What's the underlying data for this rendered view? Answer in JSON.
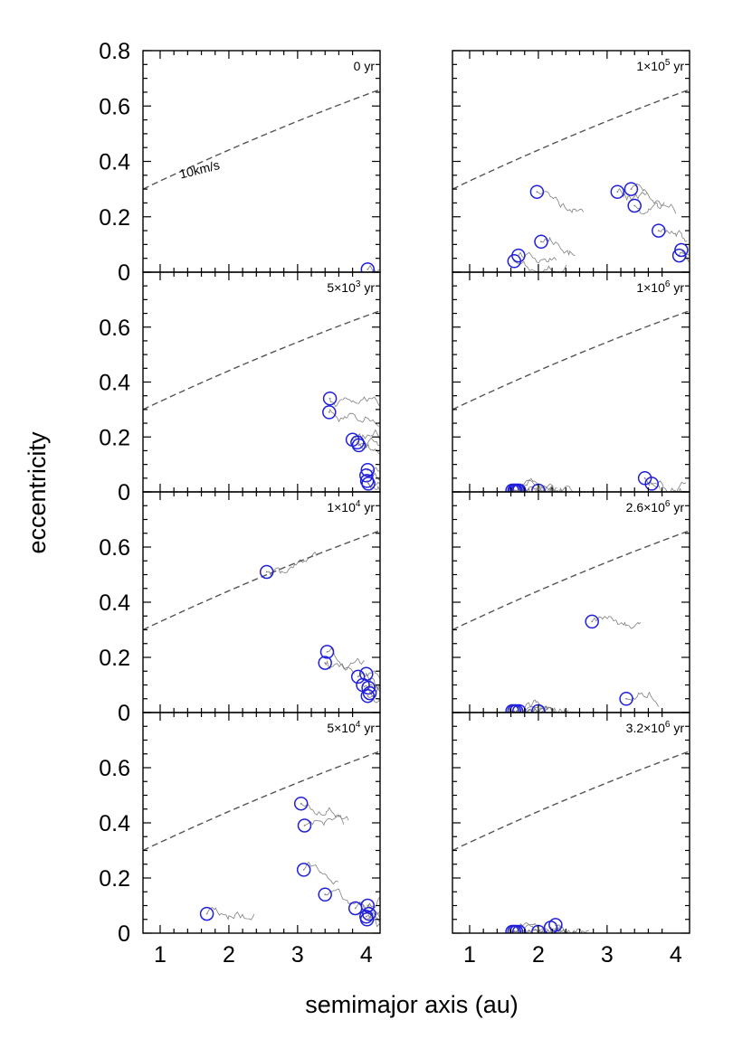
{
  "figure": {
    "xlabel": "semimajor axis (au)",
    "ylabel": "eccentricity",
    "xlim": [
      0.75,
      4.2
    ],
    "ylim": [
      0,
      0.8
    ],
    "xticks": [
      "1",
      "2",
      "3",
      "4"
    ],
    "yticks_top": [
      "0",
      "0.2",
      "0.4",
      "0.6",
      "0.8"
    ],
    "yticks": [
      "0",
      "0.2",
      "0.4",
      "0.6"
    ],
    "colors": {
      "orbit": "#808080",
      "marker": "#1f1fdc",
      "velocity_curve": "#555555",
      "frame": "#000000"
    },
    "velocity_curve_label": "10km/s"
  },
  "chart_data": [
    {
      "type": "scatter",
      "panel": "0 yr",
      "time_label": {
        "base": "0",
        "exp": "",
        "unit": "yr"
      },
      "points": [
        [
          4.02,
          0.01
        ]
      ],
      "trail_points": [
        [
          4.02,
          0.01
        ]
      ]
    },
    {
      "type": "scatter",
      "panel": "5x10^3 yr",
      "time_label": {
        "base": "5×10",
        "exp": "3",
        "unit": "yr"
      },
      "points": [
        [
          3.47,
          0.34
        ],
        [
          3.46,
          0.29
        ],
        [
          3.8,
          0.19
        ],
        [
          3.87,
          0.18
        ],
        [
          3.89,
          0.17
        ],
        [
          4.02,
          0.08
        ],
        [
          4.0,
          0.06
        ],
        [
          4.01,
          0.04
        ],
        [
          4.03,
          0.03
        ]
      ],
      "trail_points": [
        [
          3.47,
          0.34
        ],
        [
          3.46,
          0.29
        ],
        [
          3.8,
          0.19
        ],
        [
          3.87,
          0.18
        ],
        [
          3.89,
          0.17
        ],
        [
          4.02,
          0.08
        ],
        [
          4.0,
          0.06
        ],
        [
          4.01,
          0.04
        ],
        [
          4.03,
          0.03
        ]
      ]
    },
    {
      "type": "scatter",
      "panel": "1x10^4 yr",
      "time_label": {
        "base": "1×10",
        "exp": "4",
        "unit": "yr"
      },
      "points": [
        [
          2.55,
          0.51
        ],
        [
          3.43,
          0.22
        ],
        [
          3.4,
          0.18
        ],
        [
          3.88,
          0.13
        ],
        [
          4.0,
          0.14
        ],
        [
          3.95,
          0.1
        ],
        [
          4.03,
          0.09
        ],
        [
          4.02,
          0.06
        ],
        [
          4.05,
          0.07
        ]
      ],
      "trail_points": [
        [
          2.55,
          0.51
        ],
        [
          3.43,
          0.22
        ],
        [
          3.4,
          0.18
        ],
        [
          3.88,
          0.13
        ],
        [
          4.0,
          0.14
        ],
        [
          3.95,
          0.1
        ],
        [
          4.03,
          0.09
        ],
        [
          4.02,
          0.06
        ],
        [
          4.05,
          0.07
        ]
      ]
    },
    {
      "type": "scatter",
      "panel": "5x10^4 yr",
      "time_label": {
        "base": "5×10",
        "exp": "4",
        "unit": "yr"
      },
      "points": [
        [
          1.68,
          0.07
        ],
        [
          3.05,
          0.47
        ],
        [
          3.1,
          0.39
        ],
        [
          3.09,
          0.23
        ],
        [
          3.4,
          0.14
        ],
        [
          3.84,
          0.09
        ],
        [
          4.02,
          0.1
        ],
        [
          4.0,
          0.06
        ],
        [
          4.04,
          0.07
        ],
        [
          4.01,
          0.05
        ]
      ],
      "trail_points": [
        [
          1.68,
          0.07
        ],
        [
          3.05,
          0.47
        ],
        [
          3.1,
          0.39
        ],
        [
          3.09,
          0.23
        ],
        [
          3.4,
          0.14
        ],
        [
          3.84,
          0.09
        ],
        [
          4.02,
          0.1
        ],
        [
          4.0,
          0.06
        ],
        [
          4.04,
          0.07
        ],
        [
          4.01,
          0.05
        ]
      ]
    },
    {
      "type": "scatter",
      "panel": "1x10^5 yr",
      "time_label": {
        "base": "1×10",
        "exp": "5",
        "unit": "yr"
      },
      "points": [
        [
          1.65,
          0.04
        ],
        [
          1.71,
          0.06
        ],
        [
          1.98,
          0.29
        ],
        [
          2.04,
          0.11
        ],
        [
          3.15,
          0.29
        ],
        [
          3.35,
          0.3
        ],
        [
          3.4,
          0.24
        ],
        [
          3.75,
          0.15
        ],
        [
          4.05,
          0.06
        ],
        [
          4.08,
          0.08
        ]
      ],
      "trail_points": [
        [
          1.65,
          0.04
        ],
        [
          1.71,
          0.06
        ],
        [
          1.98,
          0.29
        ],
        [
          2.04,
          0.11
        ],
        [
          3.15,
          0.29
        ],
        [
          3.35,
          0.3
        ],
        [
          3.4,
          0.24
        ],
        [
          3.75,
          0.15
        ],
        [
          4.05,
          0.06
        ],
        [
          4.08,
          0.08
        ]
      ]
    },
    {
      "type": "scatter",
      "panel": "1x10^6 yr",
      "time_label": {
        "base": "1×10",
        "exp": "6",
        "unit": "yr"
      },
      "points": [
        [
          1.62,
          0.005
        ],
        [
          1.65,
          0.005
        ],
        [
          1.67,
          0.005
        ],
        [
          1.7,
          0.005
        ],
        [
          1.72,
          0.005
        ],
        [
          2.0,
          0.005
        ],
        [
          3.55,
          0.05
        ],
        [
          3.65,
          0.03
        ]
      ],
      "trail_points": [
        [
          1.62,
          0.005
        ],
        [
          1.65,
          0.005
        ],
        [
          1.67,
          0.005
        ],
        [
          1.7,
          0.005
        ],
        [
          1.72,
          0.005
        ],
        [
          2.0,
          0.005
        ],
        [
          3.55,
          0.05
        ],
        [
          3.65,
          0.03
        ]
      ]
    },
    {
      "type": "scatter",
      "panel": "2.6x10^6 yr",
      "time_label": {
        "base": "2.6×10",
        "exp": "6",
        "unit": "yr"
      },
      "points": [
        [
          1.62,
          0.005
        ],
        [
          1.65,
          0.005
        ],
        [
          1.68,
          0.005
        ],
        [
          1.72,
          0.005
        ],
        [
          2.0,
          0.005
        ],
        [
          2.78,
          0.33
        ],
        [
          3.28,
          0.05
        ]
      ],
      "trail_points": [
        [
          1.62,
          0.005
        ],
        [
          1.65,
          0.005
        ],
        [
          1.68,
          0.005
        ],
        [
          1.72,
          0.005
        ],
        [
          2.0,
          0.005
        ],
        [
          2.78,
          0.33
        ],
        [
          3.28,
          0.05
        ]
      ]
    },
    {
      "type": "scatter",
      "panel": "3.2x10^6 yr",
      "time_label": {
        "base": "3.2×10",
        "exp": "6",
        "unit": "yr"
      },
      "points": [
        [
          1.62,
          0.005
        ],
        [
          1.65,
          0.005
        ],
        [
          1.68,
          0.005
        ],
        [
          1.72,
          0.005
        ],
        [
          2.0,
          0.005
        ],
        [
          2.18,
          0.02
        ],
        [
          2.25,
          0.03
        ]
      ],
      "trail_points": [
        [
          1.62,
          0.005
        ],
        [
          1.65,
          0.005
        ],
        [
          1.68,
          0.005
        ],
        [
          1.72,
          0.005
        ],
        [
          2.0,
          0.005
        ],
        [
          2.18,
          0.02
        ],
        [
          2.25,
          0.03
        ]
      ]
    }
  ]
}
